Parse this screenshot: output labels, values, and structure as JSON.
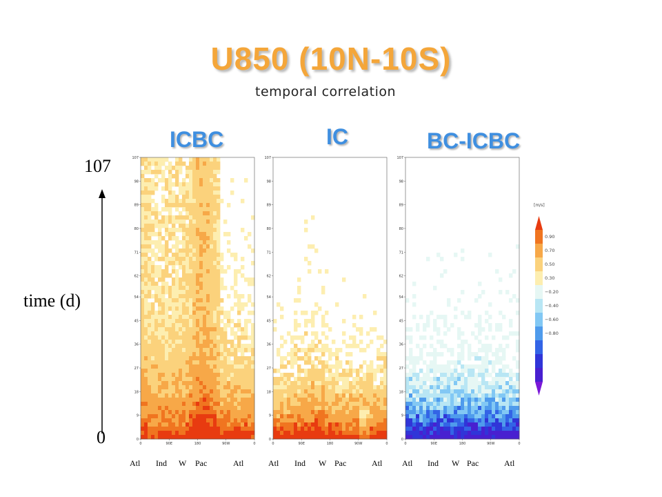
{
  "slide": {
    "title": "U850 (10N-10S)",
    "subtitle": "temporal correlation",
    "time_label": "time (d)",
    "time_top": "107",
    "time_bottom": "0"
  },
  "bottom_labels": [
    "Atl",
    "Ind",
    "W",
    "Pac",
    "Atl"
  ],
  "colorbar": {
    "unit": "[m/s]",
    "levels": [
      "0.90",
      "0.70",
      "0.50",
      "0.30",
      "-0.20",
      "-0.40",
      "-0.60",
      "-0.80"
    ],
    "colors": [
      "#e83b10",
      "#f07520",
      "#f7a848",
      "#fbd27c",
      "#fdeeb0",
      "#e6f7f4",
      "#b8e6f4",
      "#82c8f4",
      "#4f9bec",
      "#3364e6",
      "#3035d8",
      "#4820d0",
      "#7a18d8"
    ]
  },
  "chart_data": [
    {
      "type": "heatmap",
      "title": "ICBC",
      "y_ticks": [
        "0",
        "9",
        "18",
        "27",
        "36",
        "45",
        "54",
        "62",
        "71",
        "80",
        "89",
        "98",
        "107"
      ],
      "x_ticks": [
        "0",
        "90E",
        "180",
        "90W",
        "0"
      ],
      "ylim": [
        0,
        107
      ],
      "xlim": [
        "0",
        "0"
      ],
      "note_colors": [
        "#e83b10",
        "#f07520",
        "#f7a848",
        "#fbd27c",
        "#fdeeb0",
        "#ffffff"
      ]
    },
    {
      "type": "heatmap",
      "title": "IC",
      "y_ticks": [
        "0",
        "9",
        "18",
        "27",
        "36",
        "45",
        "54",
        "62",
        "71",
        "80",
        "89",
        "98",
        "107"
      ],
      "x_ticks": [
        "0",
        "90E",
        "180",
        "90W",
        "0"
      ],
      "ylim": [
        0,
        107
      ],
      "xlim": [
        "0",
        "0"
      ]
    },
    {
      "type": "heatmap",
      "title": "BC-ICBC",
      "y_ticks": [
        "0",
        "9",
        "18",
        "27",
        "36",
        "45",
        "54",
        "62",
        "71",
        "80",
        "89",
        "98",
        "107"
      ],
      "x_ticks": [
        "0",
        "90E",
        "180",
        "90W",
        "0"
      ],
      "ylim": [
        0,
        107
      ],
      "xlim": [
        "0",
        "0"
      ]
    }
  ]
}
